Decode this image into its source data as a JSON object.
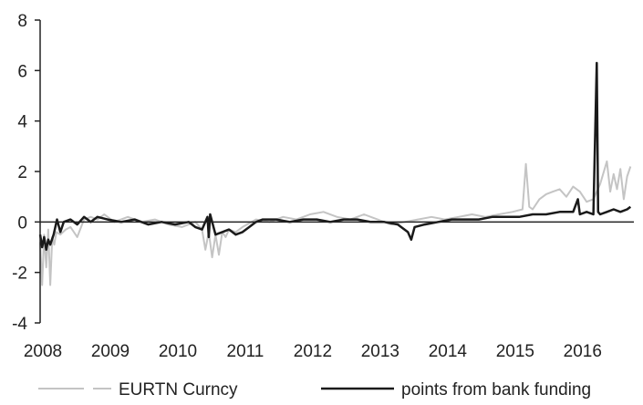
{
  "chart_data": {
    "type": "line",
    "title": "",
    "xlabel": "",
    "ylabel": "",
    "xlim": [
      2008,
      2016.8
    ],
    "ylim": [
      -4,
      8
    ],
    "xticks": [
      "2008",
      "2009",
      "2010",
      "2011",
      "2012",
      "2013",
      "2014",
      "2015",
      "2016"
    ],
    "yticks": [
      "-4",
      "-2",
      "0",
      "2",
      "4",
      "6",
      "8"
    ],
    "grid": false,
    "legend_position": "bottom",
    "series": [
      {
        "name": "EURTN Curncy",
        "color": "#c4c4c4",
        "style": "dashed",
        "x": [
          2008.0,
          2008.03,
          2008.06,
          2008.09,
          2008.12,
          2008.15,
          2008.18,
          2008.21,
          2008.24,
          2008.3,
          2008.38,
          2008.45,
          2008.55,
          2008.65,
          2008.75,
          2008.85,
          2008.95,
          2009.1,
          2009.3,
          2009.5,
          2009.7,
          2009.9,
          2010.1,
          2010.3,
          2010.4,
          2010.45,
          2010.5,
          2010.55,
          2010.6,
          2010.65,
          2010.7,
          2010.75,
          2010.8,
          2010.9,
          2011.0,
          2011.2,
          2011.4,
          2011.6,
          2011.8,
          2012.0,
          2012.2,
          2012.4,
          2012.6,
          2012.8,
          2013.0,
          2013.2,
          2013.4,
          2013.6,
          2013.8,
          2014.0,
          2014.2,
          2014.4,
          2014.6,
          2014.8,
          2015.0,
          2015.15,
          2015.2,
          2015.25,
          2015.3,
          2015.4,
          2015.5,
          2015.6,
          2015.7,
          2015.8,
          2015.9,
          2016.0,
          2016.1,
          2016.2,
          2016.3,
          2016.4,
          2016.45,
          2016.5,
          2016.55,
          2016.6,
          2016.65,
          2016.7,
          2016.75
        ],
        "y": [
          -0.8,
          -2.5,
          -0.5,
          -1.8,
          -0.3,
          -2.5,
          -0.6,
          -0.9,
          -0.4,
          -0.5,
          -0.3,
          -0.2,
          -0.6,
          0.1,
          0.2,
          0.1,
          0.3,
          0.0,
          0.2,
          0.0,
          0.1,
          -0.1,
          -0.2,
          0.0,
          -0.3,
          -1.1,
          -0.4,
          -1.4,
          -0.5,
          -1.3,
          -0.4,
          -0.6,
          -0.3,
          -0.4,
          -0.2,
          0.1,
          0.0,
          0.2,
          0.1,
          0.3,
          0.4,
          0.2,
          0.1,
          0.3,
          0.1,
          -0.1,
          0.0,
          0.1,
          0.2,
          0.1,
          0.2,
          0.3,
          0.2,
          0.3,
          0.4,
          0.5,
          2.3,
          0.6,
          0.5,
          0.9,
          1.1,
          1.2,
          1.3,
          1.0,
          1.4,
          1.2,
          0.8,
          0.9,
          1.5,
          2.4,
          1.2,
          1.9,
          1.3,
          2.1,
          0.9,
          1.8,
          2.2
        ]
      },
      {
        "name": "points from bank funding",
        "color": "#1a1a1a",
        "style": "solid",
        "x": [
          2008.0,
          2008.03,
          2008.06,
          2008.09,
          2008.12,
          2008.15,
          2008.2,
          2008.25,
          2008.3,
          2008.35,
          2008.45,
          2008.55,
          2008.65,
          2008.75,
          2008.85,
          2009.0,
          2009.2,
          2009.4,
          2009.6,
          2009.8,
          2010.0,
          2010.2,
          2010.3,
          2010.4,
          2010.48,
          2010.5,
          2010.52,
          2010.6,
          2010.7,
          2010.8,
          2010.9,
          2011.0,
          2011.1,
          2011.2,
          2011.3,
          2011.5,
          2011.7,
          2011.9,
          2012.1,
          2012.3,
          2012.5,
          2012.7,
          2012.9,
          2013.1,
          2013.3,
          2013.45,
          2013.5,
          2013.55,
          2013.7,
          2013.9,
          2014.1,
          2014.3,
          2014.5,
          2014.7,
          2014.9,
          2015.1,
          2015.3,
          2015.5,
          2015.7,
          2015.9,
          2015.97,
          2016.0,
          2016.1,
          2016.2,
          2016.25,
          2016.27,
          2016.3,
          2016.4,
          2016.5,
          2016.6,
          2016.7,
          2016.75
        ],
        "y": [
          -0.5,
          -1.0,
          -0.6,
          -1.1,
          -0.7,
          -0.9,
          -0.5,
          0.1,
          -0.4,
          0.0,
          0.1,
          -0.1,
          0.2,
          0.0,
          0.2,
          0.1,
          0.0,
          0.1,
          -0.1,
          0.0,
          -0.1,
          0.0,
          -0.2,
          -0.3,
          0.2,
          -0.6,
          0.3,
          -0.5,
          -0.4,
          -0.3,
          -0.5,
          -0.4,
          -0.2,
          0.0,
          0.1,
          0.1,
          0.0,
          0.1,
          0.1,
          0.0,
          0.1,
          0.1,
          0.0,
          0.0,
          -0.1,
          -0.4,
          -0.7,
          -0.2,
          -0.1,
          0.0,
          0.1,
          0.1,
          0.1,
          0.2,
          0.2,
          0.2,
          0.3,
          0.3,
          0.4,
          0.4,
          0.9,
          0.3,
          0.4,
          0.3,
          6.3,
          0.4,
          0.3,
          0.4,
          0.5,
          0.4,
          0.5,
          0.6
        ]
      }
    ]
  }
}
